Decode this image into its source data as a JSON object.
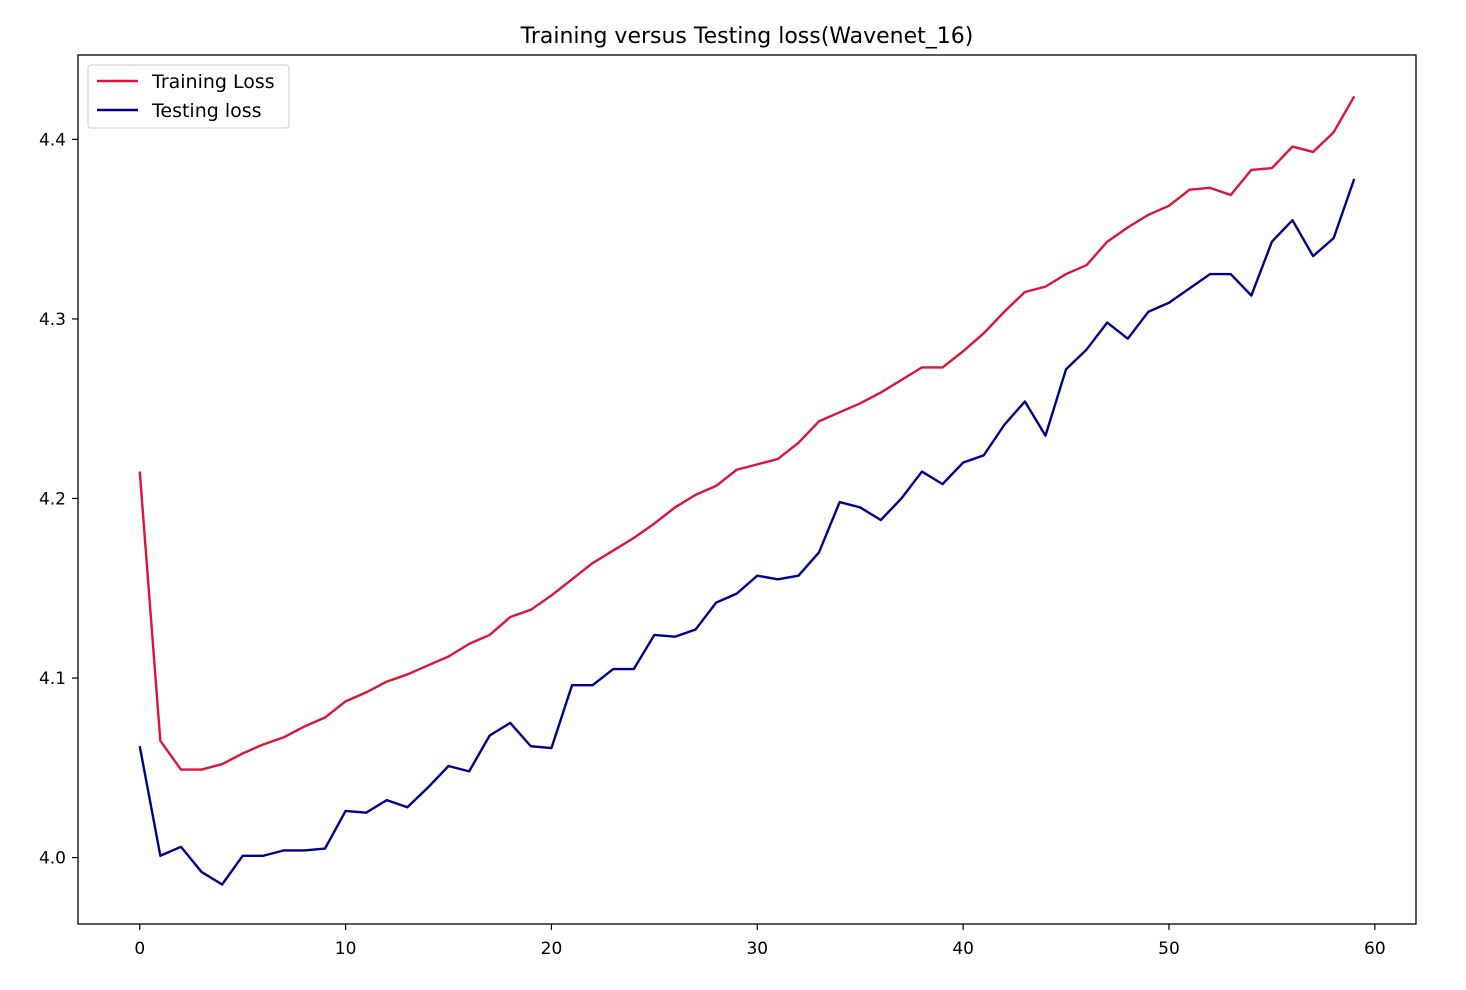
{
  "chart_data": {
    "type": "line",
    "title": "Training versus Testing loss(Wavenet_16)",
    "xlabel": "",
    "ylabel": "",
    "xlim": [
      -3,
      62
    ],
    "ylim": [
      3.963,
      4.447
    ],
    "x_ticks": [
      0,
      10,
      20,
      30,
      40,
      50,
      60
    ],
    "y_ticks": [
      4.0,
      4.1,
      4.2,
      4.3,
      4.4
    ],
    "x_tick_labels": [
      "0",
      "10",
      "20",
      "30",
      "40",
      "50",
      "60"
    ],
    "y_tick_labels": [
      "4.0",
      "4.1",
      "4.2",
      "4.3",
      "4.4"
    ],
    "grid": false,
    "legend_position": "upper-left",
    "x": [
      0,
      1,
      2,
      3,
      4,
      5,
      6,
      7,
      8,
      9,
      10,
      11,
      12,
      13,
      14,
      15,
      16,
      17,
      18,
      19,
      20,
      21,
      22,
      23,
      24,
      25,
      26,
      27,
      28,
      29,
      30,
      31,
      32,
      33,
      34,
      35,
      36,
      37,
      38,
      39,
      40,
      41,
      42,
      43,
      44,
      45,
      46,
      47,
      48,
      49,
      50,
      51,
      52,
      53,
      54,
      55,
      56,
      57,
      58,
      59
    ],
    "series": [
      {
        "name": "Training Loss",
        "color": "#dc143c",
        "values": [
          4.215,
          4.065,
          4.049,
          4.049,
          4.052,
          4.058,
          4.063,
          4.067,
          4.073,
          4.078,
          4.087,
          4.092,
          4.098,
          4.102,
          4.107,
          4.112,
          4.119,
          4.124,
          4.134,
          4.138,
          4.146,
          4.155,
          4.164,
          4.171,
          4.178,
          4.186,
          4.195,
          4.202,
          4.207,
          4.216,
          4.219,
          4.222,
          4.231,
          4.243,
          4.248,
          4.253,
          4.259,
          4.266,
          4.273,
          4.273,
          4.282,
          4.292,
          4.304,
          4.315,
          4.318,
          4.325,
          4.33,
          4.343,
          4.351,
          4.358,
          4.363,
          4.372,
          4.373,
          4.369,
          4.383,
          4.384,
          4.396,
          4.393,
          4.404,
          4.424
        ]
      },
      {
        "name": "Testing loss",
        "color": "#00008b",
        "values": [
          4.062,
          4.001,
          4.006,
          3.992,
          3.985,
          4.001,
          4.001,
          4.004,
          4.004,
          4.005,
          4.026,
          4.025,
          4.032,
          4.028,
          4.039,
          4.051,
          4.048,
          4.068,
          4.075,
          4.062,
          4.061,
          4.096,
          4.096,
          4.105,
          4.105,
          4.124,
          4.123,
          4.127,
          4.142,
          4.147,
          4.157,
          4.155,
          4.157,
          4.17,
          4.198,
          4.195,
          4.188,
          4.2,
          4.215,
          4.208,
          4.22,
          4.224,
          4.241,
          4.254,
          4.235,
          4.272,
          4.283,
          4.298,
          4.289,
          4.304,
          4.309,
          4.317,
          4.325,
          4.325,
          4.313,
          4.343,
          4.355,
          4.335,
          4.345,
          4.378
        ]
      }
    ]
  }
}
